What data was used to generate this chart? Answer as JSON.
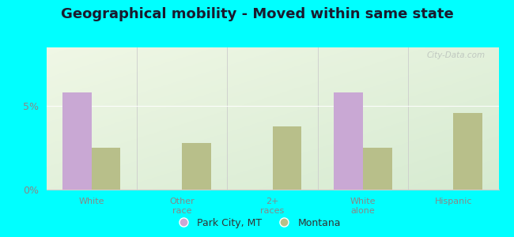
{
  "title": "Geographical mobility - Moved within same state",
  "categories": [
    "White",
    "Other\nrace",
    "2+\nraces",
    "White\nalone",
    "Hispanic"
  ],
  "park_city_values": [
    5.8,
    0,
    0,
    5.8,
    0
  ],
  "montana_values": [
    2.5,
    2.8,
    3.8,
    2.5,
    4.6
  ],
  "park_city_color": "#c9a8d4",
  "montana_color": "#b8bf8a",
  "ylim": [
    0,
    8.5
  ],
  "yticks": [
    0,
    5
  ],
  "ytick_labels": [
    "0%",
    "5%"
  ],
  "bar_width": 0.32,
  "background_outer": "#00ffff",
  "legend_labels": [
    "Park City, MT",
    "Montana"
  ],
  "title_fontsize": 13,
  "title_color": "#1a1a2e",
  "watermark": "City-Data.com",
  "tick_color": "#888888"
}
